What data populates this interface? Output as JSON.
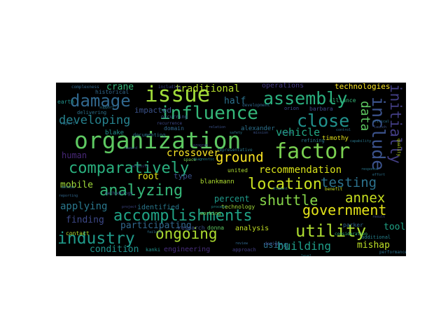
{
  "words": [
    {
      "text": "organization",
      "color": "#5ec962"
    },
    {
      "text": "factor",
      "color": "#7ad151"
    },
    {
      "text": "issue",
      "color": "#9fda3a"
    },
    {
      "text": "influence",
      "color": "#35b779"
    },
    {
      "text": "damage",
      "color": "#31688e"
    },
    {
      "text": "assembly",
      "color": "#2ab07f"
    },
    {
      "text": "comparatively",
      "color": "#2ab07f"
    },
    {
      "text": "include",
      "color": "#3b528b"
    },
    {
      "text": "accomplishments",
      "color": "#20a386"
    },
    {
      "text": "government",
      "color": "#e5e419"
    },
    {
      "text": "location",
      "color": "#c8e020"
    },
    {
      "text": "industry",
      "color": "#1f9a8a"
    },
    {
      "text": "analyzing",
      "color": "#35b779"
    },
    {
      "text": "close",
      "color": "#21918c"
    },
    {
      "text": "utility",
      "color": "#addc30"
    },
    {
      "text": "ongoing",
      "color": "#addc30"
    },
    {
      "text": "initially",
      "color": "#433e85"
    },
    {
      "text": "annex",
      "color": "#c8e020"
    },
    {
      "text": "shuttle",
      "color": "#86d549"
    },
    {
      "text": "developing",
      "color": "#26828e"
    },
    {
      "text": "data",
      "color": "#5ec962"
    },
    {
      "text": "testing",
      "color": "#2c728e"
    },
    {
      "text": "ground",
      "color": "#fde725"
    },
    {
      "text": "crossover",
      "color": "#fde725"
    },
    {
      "text": "participating",
      "color": "#31688e"
    },
    {
      "text": "recommendation",
      "color": "#d8e219"
    },
    {
      "text": "vehicle",
      "color": "#22a884"
    },
    {
      "text": "traditional",
      "color": "#b5de2b"
    },
    {
      "text": "building",
      "color": "#1f9e89"
    },
    {
      "text": "mobile",
      "color": "#a0da39"
    },
    {
      "text": "applying",
      "color": "#2a788e"
    },
    {
      "text": "finding",
      "color": "#3e4989"
    },
    {
      "text": "condition",
      "color": "#21918c"
    },
    {
      "text": "using",
      "color": "#2c728e"
    },
    {
      "text": "mishap",
      "color": "#bddf26"
    },
    {
      "text": "tool",
      "color": "#20a386"
    },
    {
      "text": "crane",
      "color": "#35b779"
    },
    {
      "text": "half",
      "color": "#2c728e"
    },
    {
      "text": "percent",
      "color": "#1f9a8a"
    },
    {
      "text": "human",
      "color": "#482878"
    },
    {
      "text": "root",
      "color": "#e5e419"
    },
    {
      "text": "type",
      "color": "#3b528b"
    },
    {
      "text": "analysis",
      "color": "#c2df23"
    },
    {
      "text": "impacted",
      "color": "#3b528b"
    },
    {
      "text": "technologies",
      "color": "#fde725"
    },
    {
      "text": "operations",
      "color": "#443983"
    },
    {
      "text": "engineering",
      "color": "#472d7b"
    },
    {
      "text": "identified",
      "color": "#2a788e"
    },
    {
      "text": "blankmann",
      "color": "#addc30"
    },
    {
      "text": "blake",
      "color": "#21918c"
    },
    {
      "text": "timothy",
      "color": "#e5e419"
    },
    {
      "text": "barbara",
      "color": "#3e4989"
    },
    {
      "text": "alexander",
      "color": "#2c728e"
    },
    {
      "text": "historical",
      "color": "#31688e"
    },
    {
      "text": "united",
      "color": "#addc30"
    },
    {
      "text": "technology",
      "color": "#a0da39"
    },
    {
      "text": "donna",
      "color": "#5ec962"
    },
    {
      "text": "contact",
      "color": "#b5de2b"
    },
    {
      "text": "parker",
      "color": "#31688e"
    },
    {
      "text": "alliance",
      "color": "#35b779"
    },
    {
      "text": "research",
      "color": "#3b528b"
    },
    {
      "text": "earth",
      "color": "#21918c"
    },
    {
      "text": "domain",
      "color": "#31688e"
    },
    {
      "text": "documenting",
      "color": "#2c728e"
    },
    {
      "text": "occurring",
      "color": "#3b528b"
    },
    {
      "text": "recurrence",
      "color": "#3e4989"
    },
    {
      "text": "delivering",
      "color": "#2c728e"
    },
    {
      "text": "representative",
      "color": "#2a788e"
    },
    {
      "text": "working",
      "color": "#7ad151"
    },
    {
      "text": "approach",
      "color": "#433e85"
    },
    {
      "text": "kanki",
      "color": "#21918c"
    },
    {
      "text": "additional",
      "color": "#26828e"
    },
    {
      "text": "orion",
      "color": "#3e4989"
    },
    {
      "text": "development",
      "color": "#31688e"
    },
    {
      "text": "refining",
      "color": "#2a788e"
    },
    {
      "text": "methodology",
      "color": "#3b528b"
    },
    {
      "text": "including",
      "color": "#3e4989"
    },
    {
      "text": "benefit",
      "color": "#c8e020"
    },
    {
      "text": "design",
      "color": "#3e4989"
    },
    {
      "text": "performance",
      "color": "#2c728e"
    },
    {
      "text": "quality",
      "color": "#c2df23"
    },
    {
      "text": "consideration",
      "color": "#35b779"
    },
    {
      "text": "complexness",
      "color": "#31688e"
    },
    {
      "text": "report",
      "color": "#2c728e"
    },
    {
      "text": "support",
      "color": "#2a788e"
    },
    {
      "text": "space",
      "color": "#7ad151"
    },
    {
      "text": "diagnostic",
      "color": "#26828e"
    },
    {
      "text": "relation",
      "color": "#3b528b"
    },
    {
      "text": "effort",
      "color": "#2c728e"
    },
    {
      "text": "reporting",
      "color": "#31688e"
    },
    {
      "text": "project",
      "color": "#3e4989"
    },
    {
      "text": "method",
      "color": "#2c728e"
    },
    {
      "text": "safety",
      "color": "#2a788e"
    },
    {
      "text": "mission",
      "color": "#3b528b"
    },
    {
      "text": "program",
      "color": "#3e4989"
    },
    {
      "text": "element",
      "color": "#26828e"
    },
    {
      "text": "system",
      "color": "#31688e"
    },
    {
      "text": "process",
      "color": "#21918c"
    },
    {
      "text": "critical",
      "color": "#2c728e"
    },
    {
      "text": "launch",
      "color": "#3b528b"
    },
    {
      "text": "capability",
      "color": "#2a788e"
    },
    {
      "text": "result",
      "color": "#3e4989"
    },
    {
      "text": "failure",
      "color": "#2c728e"
    },
    {
      "text": "review",
      "color": "#31688e"
    },
    {
      "text": "level",
      "color": "#26828e"
    },
    {
      "text": "hazard",
      "color": "#3b528b"
    },
    {
      "text": "response",
      "color": "#2a788e"
    },
    {
      "text": "control",
      "color": "#2c728e"
    },
    {
      "text": "activity",
      "color": "#3e4989"
    }
  ]
}
